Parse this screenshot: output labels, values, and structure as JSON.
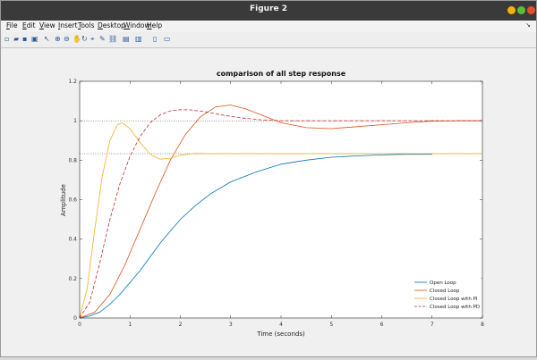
{
  "window": {
    "title": "Figure 2",
    "buttons": [
      {
        "name": "minimize",
        "color": "#f5b400"
      },
      {
        "name": "maximize",
        "color": "#5bbf3a"
      },
      {
        "name": "close",
        "color": "#e8502a"
      }
    ]
  },
  "menubar": {
    "items": [
      {
        "label": "File",
        "ul": "F",
        "rest": "ile"
      },
      {
        "label": "Edit",
        "ul": "E",
        "rest": "dit"
      },
      {
        "label": "View",
        "ul": "V",
        "rest": "iew"
      },
      {
        "label": "Insert",
        "ul": "I",
        "rest": "nsert"
      },
      {
        "label": "Tools",
        "ul": "T",
        "rest": "ools"
      },
      {
        "label": "Desktop",
        "ul": "D",
        "rest": "esktop"
      },
      {
        "label": "Window",
        "ul": "W",
        "rest": "indow"
      },
      {
        "label": "Help",
        "ul": "H",
        "rest": "elp"
      }
    ],
    "overflow_icon": "dock-arrow-icon"
  },
  "toolbar": {
    "icons": [
      "new-figure-icon",
      "open-file-icon",
      "save-icon",
      "print-icon",
      "pointer-icon",
      "zoom-in-icon",
      "zoom-out-icon",
      "pan-icon",
      "rotate-icon",
      "data-cursor-icon",
      "brush-icon",
      "link-plot-icon",
      "colorbar-icon",
      "legend-icon",
      "hide-plot-tools-icon",
      "show-plot-tools-icon"
    ]
  },
  "chart_data": {
    "type": "line",
    "title": "comparison of all step response",
    "xlabel": "Time (seconds)",
    "ylabel": "Amplitude",
    "xlim": [
      0,
      8
    ],
    "ylim": [
      0,
      1.2
    ],
    "xticks": [
      0,
      1,
      2,
      3,
      4,
      5,
      6,
      7,
      8
    ],
    "yticks": [
      0,
      0.2,
      0.4,
      0.6,
      0.8,
      1,
      1.2
    ],
    "grid": false,
    "legend_position": "bottom-right",
    "reference_lines": [
      {
        "y": 1.0,
        "style": "dotted"
      },
      {
        "y": 0.833,
        "style": "dotted"
      }
    ],
    "series": [
      {
        "name": "Open Loop",
        "color": "#0072bd",
        "style": "solid",
        "x": [
          0,
          0.2,
          0.4,
          0.6,
          0.8,
          1.0,
          1.2,
          1.4,
          1.6,
          1.8,
          2.0,
          2.3,
          2.6,
          3.0,
          3.5,
          4.0,
          4.5,
          5.0,
          5.5,
          6.0,
          6.5,
          7.0
        ],
        "y": [
          0,
          0.01,
          0.03,
          0.07,
          0.12,
          0.18,
          0.24,
          0.31,
          0.38,
          0.44,
          0.5,
          0.57,
          0.63,
          0.69,
          0.74,
          0.78,
          0.8,
          0.815,
          0.822,
          0.827,
          0.83,
          0.83
        ]
      },
      {
        "name": "Closed Loop",
        "color": "#d95319",
        "style": "solid",
        "x": [
          0,
          0.3,
          0.6,
          0.9,
          1.2,
          1.5,
          1.8,
          2.1,
          2.4,
          2.7,
          3.0,
          3.3,
          3.6,
          4.0,
          4.5,
          5.0,
          5.5,
          6.0,
          6.5,
          7.0,
          7.5,
          8.0
        ],
        "y": [
          0,
          0.03,
          0.12,
          0.27,
          0.45,
          0.63,
          0.8,
          0.93,
          1.02,
          1.07,
          1.08,
          1.06,
          1.03,
          0.99,
          0.965,
          0.96,
          0.97,
          0.98,
          0.99,
          0.998,
          1.0,
          1.0
        ]
      },
      {
        "name": "Closed Loop with PI",
        "color": "#edb120",
        "style": "solid",
        "x": [
          0,
          0.15,
          0.3,
          0.45,
          0.6,
          0.75,
          0.85,
          1.0,
          1.2,
          1.4,
          1.6,
          1.8,
          2.0,
          2.3,
          2.6,
          3.0,
          4.0,
          5.0,
          6.0,
          7.0,
          8.0
        ],
        "y": [
          0,
          0.15,
          0.45,
          0.72,
          0.9,
          0.98,
          0.99,
          0.96,
          0.89,
          0.83,
          0.805,
          0.81,
          0.825,
          0.835,
          0.833,
          0.833,
          0.833,
          0.833,
          0.833,
          0.833,
          0.833
        ]
      },
      {
        "name": "Closed Loop with PD",
        "color": "#c03030",
        "style": "dashed",
        "x": [
          0,
          0.2,
          0.4,
          0.6,
          0.8,
          1.0,
          1.2,
          1.4,
          1.6,
          1.8,
          2.0,
          2.2,
          2.5,
          2.8,
          3.2,
          3.6,
          4.0,
          5.0,
          6.0,
          7.0,
          8.0
        ],
        "y": [
          0,
          0.08,
          0.28,
          0.5,
          0.68,
          0.82,
          0.92,
          0.99,
          1.03,
          1.05,
          1.056,
          1.055,
          1.045,
          1.03,
          1.015,
          1.005,
          1.0,
          1.0,
          1.0,
          1.0,
          1.0
        ]
      }
    ]
  }
}
